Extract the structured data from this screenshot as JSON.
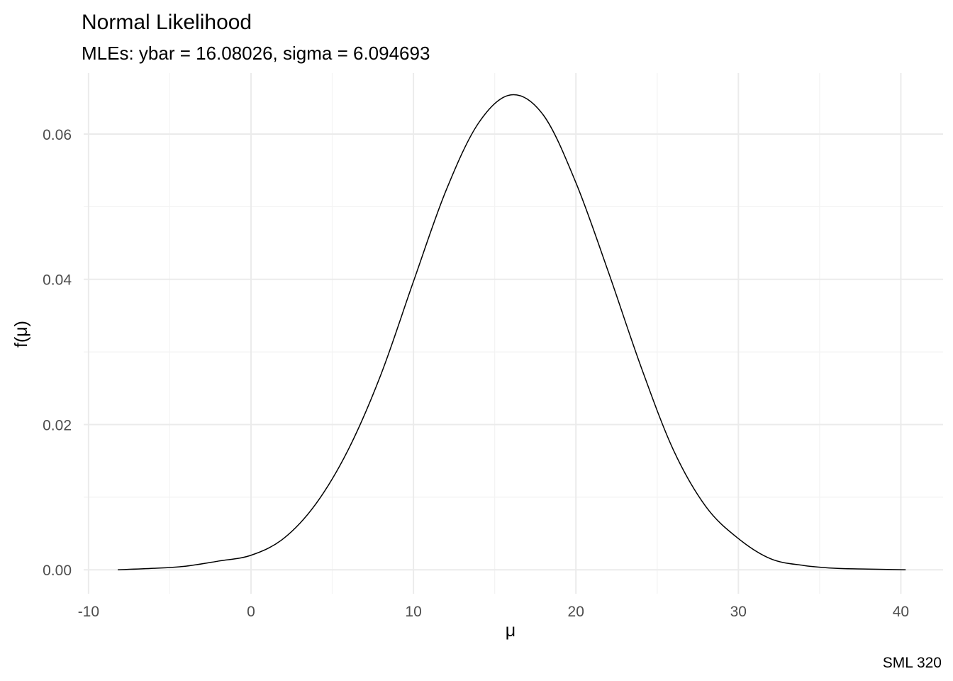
{
  "chart_data": {
    "type": "line",
    "title": "Normal Likelihood",
    "subtitle": "MLEs: ybar = 16.08026, sigma = 6.094693",
    "xlabel": "μ",
    "ylabel": "f(μ)",
    "caption": "SML 320",
    "xlim": [
      -10.3,
      42.6
    ],
    "ylim": [
      -0.0033,
      0.0684
    ],
    "x_ticks": [
      -10,
      0,
      10,
      20,
      30,
      40
    ],
    "x_tick_labels": [
      "-10",
      "0",
      "10",
      "20",
      "30",
      "40"
    ],
    "y_ticks": [
      0,
      0.02,
      0.04,
      0.06
    ],
    "y_tick_labels": [
      "0.00",
      "0.02",
      "0.04",
      "0.06"
    ],
    "grid": true,
    "series": [
      {
        "x": [
          -8.2,
          -6,
          -4,
          -2,
          0,
          2,
          4,
          6,
          8,
          10,
          12,
          14,
          16,
          18,
          20,
          22,
          24,
          26,
          28,
          30,
          32,
          34,
          36,
          38,
          40.3
        ],
        "values": [
          0.0,
          0.0002,
          0.0005,
          0.0012,
          0.002,
          0.0043,
          0.0091,
          0.0166,
          0.0269,
          0.0397,
          0.0522,
          0.0615,
          0.0654,
          0.0626,
          0.0533,
          0.041,
          0.028,
          0.0165,
          0.0087,
          0.0043,
          0.0015,
          0.0006,
          0.0002,
          0.0001,
          0.0
        ]
      }
    ]
  }
}
